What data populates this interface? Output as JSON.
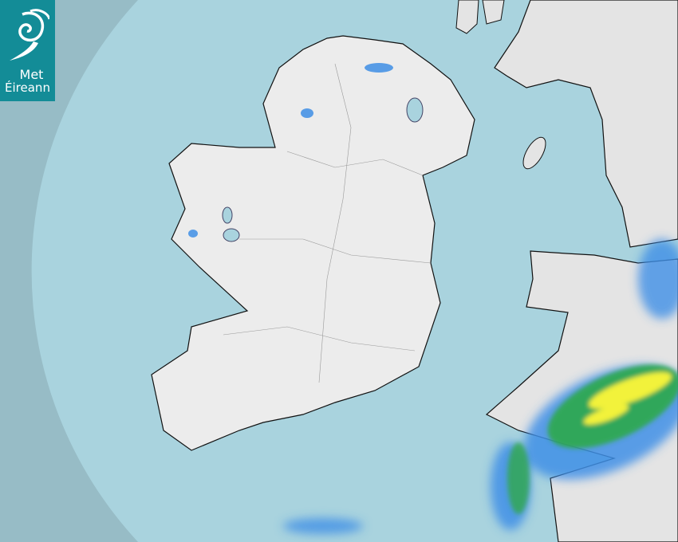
{
  "logo": {
    "line1": "Met",
    "line2": "Éireann",
    "color": "#138c97"
  },
  "map": {
    "type": "precipitation radar",
    "colors": {
      "sea_outside_coverage": "#97bcc6",
      "sea_coverage": "#a9d3de",
      "land": "#ececec",
      "rain_light": "#3f8fe6",
      "rain_moderate": "#2fa84a",
      "rain_heavy": "#f2f23a"
    }
  }
}
